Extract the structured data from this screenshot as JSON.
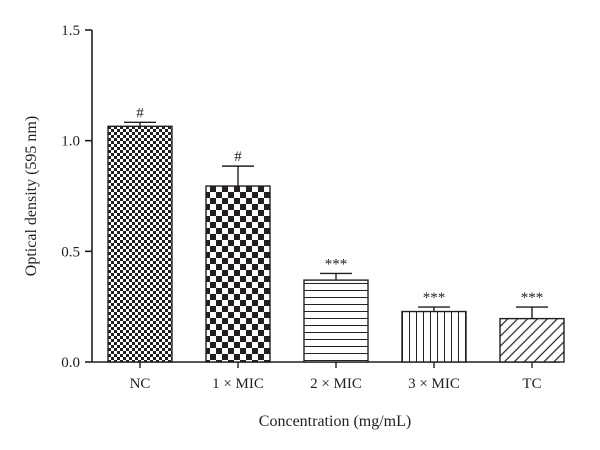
{
  "chart_data": {
    "type": "bar",
    "title": "",
    "xlabel": "Concentration (mg/mL)",
    "ylabel": "Optical density (595 nm)",
    "ylim": [
      0,
      1.5
    ],
    "yticks": [
      "0.0",
      "0.5",
      "1.0",
      "1.5"
    ],
    "grid": false,
    "categories": [
      "NC",
      "1 × MIC",
      "2 × MIC",
      "3 × MIC",
      "TC"
    ],
    "values": [
      1.065,
      0.795,
      0.37,
      0.228,
      0.196
    ],
    "errors": [
      0.018,
      0.09,
      0.03,
      0.02,
      0.052
    ],
    "annotations": [
      "#",
      "#",
      "***",
      "***",
      "***"
    ],
    "patterns": [
      "checker-small",
      "checker-large",
      "horizontal-lines",
      "vertical-lines",
      "diagonal-lines"
    ],
    "bar_color": "#231f20"
  }
}
